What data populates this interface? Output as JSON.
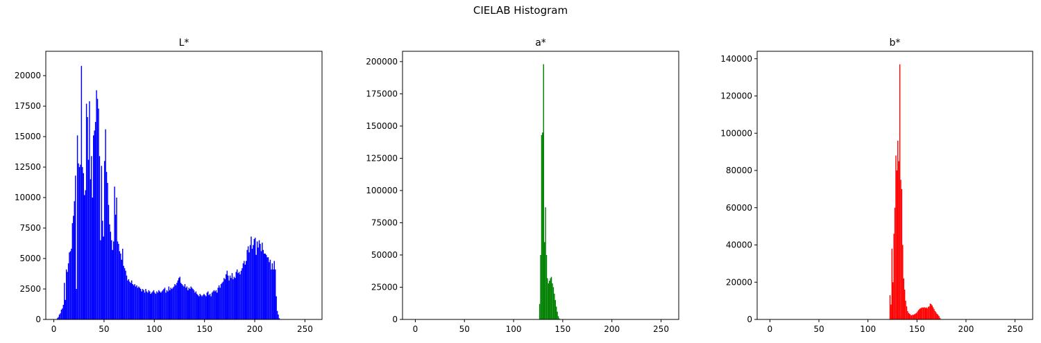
{
  "figure": {
    "title": "CIELAB Histogram"
  },
  "chart_data": [
    {
      "type": "bar",
      "title": "L*",
      "color": "#0000ff",
      "xlim": [
        -8,
        267
      ],
      "ylim": [
        0,
        22000
      ],
      "xticks": [
        0,
        50,
        100,
        150,
        200,
        250
      ],
      "yticks": [
        0,
        2500,
        5000,
        7500,
        10000,
        12500,
        15000,
        17500,
        20000
      ],
      "bin_start": 0,
      "values": [
        0,
        0,
        0,
        100,
        200,
        400,
        500,
        800,
        900,
        1200,
        3000,
        1600,
        4100,
        3900,
        4600,
        5500,
        5600,
        5800,
        7900,
        8500,
        9700,
        11800,
        2500,
        15100,
        12800,
        12500,
        12700,
        20800,
        12500,
        12000,
        10200,
        10600,
        17700,
        16600,
        13100,
        17900,
        11500,
        13400,
        10000,
        15100,
        15500,
        16200,
        18800,
        18100,
        17300,
        13400,
        6500,
        12600,
        8100,
        6800,
        13000,
        15600,
        12100,
        11200,
        9400,
        7800,
        7200,
        6500,
        5700,
        6400,
        10900,
        8600,
        10000,
        6400,
        6200,
        5600,
        5400,
        4900,
        5800,
        4400,
        4200,
        4000,
        3600,
        3200,
        3300,
        3100,
        3000,
        3200,
        2900,
        2800,
        2900,
        2700,
        2800,
        2600,
        2700,
        2600,
        2500,
        2300,
        2500,
        2400,
        2200,
        2500,
        2300,
        2200,
        2400,
        2300,
        2100,
        2200,
        2300,
        2400,
        2200,
        2100,
        2300,
        2200,
        2400,
        2300,
        2200,
        2300,
        2400,
        2500,
        2600,
        2200,
        2400,
        2300,
        2700,
        2400,
        2600,
        2500,
        2600,
        2700,
        2900,
        2800,
        3000,
        3200,
        3400,
        3500,
        3000,
        2900,
        2800,
        2700,
        2900,
        2600,
        2700,
        2400,
        2600,
        2500,
        2700,
        2600,
        2500,
        2400,
        2200,
        2300,
        2100,
        2000,
        1900,
        2100,
        2000,
        1900,
        2000,
        2100,
        2000,
        1900,
        2200,
        2300,
        2000,
        2100,
        1900,
        2200,
        2300,
        2400,
        2300,
        2400,
        2200,
        2600,
        2800,
        2600,
        2900,
        3000,
        3100,
        3400,
        3300,
        3700,
        4000,
        3600,
        3200,
        3600,
        3400,
        3800,
        3300,
        3500,
        3400,
        3900,
        4100,
        3800,
        3900,
        3700,
        4000,
        4200,
        4600,
        4800,
        4500,
        4800,
        5700,
        6000,
        5500,
        6100,
        6800,
        5800,
        6100,
        6600,
        6700,
        5300,
        6400,
        5900,
        6500,
        6200,
        5600,
        6300,
        5700,
        5400,
        5400,
        5300,
        5100,
        5100,
        4700,
        4900,
        4100,
        4600,
        4100,
        4800,
        4100,
        1900,
        700,
        400,
        100,
        0,
        0,
        0,
        0,
        0,
        0,
        0,
        0,
        0,
        0,
        0,
        0,
        0,
        0,
        0,
        0,
        0,
        0,
        0,
        0,
        0,
        0,
        0,
        0,
        0
      ]
    },
    {
      "type": "bar",
      "title": "a*",
      "color": "#008000",
      "xlim": [
        -13,
        268
      ],
      "ylim": [
        0,
        208000
      ],
      "xticks": [
        0,
        50,
        100,
        150,
        200,
        250
      ],
      "yticks": [
        0,
        25000,
        50000,
        75000,
        100000,
        125000,
        150000,
        175000,
        200000
      ],
      "bin_start": 0,
      "values": [
        0,
        0,
        0,
        0,
        0,
        0,
        0,
        0,
        0,
        0,
        0,
        0,
        0,
        0,
        0,
        0,
        0,
        0,
        0,
        0,
        0,
        0,
        0,
        0,
        0,
        0,
        0,
        0,
        0,
        0,
        0,
        0,
        0,
        0,
        0,
        0,
        0,
        0,
        0,
        0,
        0,
        0,
        0,
        0,
        0,
        0,
        0,
        0,
        0,
        0,
        0,
        0,
        0,
        0,
        0,
        0,
        0,
        0,
        0,
        0,
        0,
        0,
        0,
        0,
        0,
        0,
        0,
        0,
        0,
        0,
        0,
        0,
        0,
        0,
        0,
        0,
        0,
        0,
        0,
        0,
        0,
        0,
        0,
        0,
        0,
        0,
        0,
        0,
        0,
        0,
        0,
        0,
        0,
        0,
        0,
        0,
        0,
        0,
        0,
        0,
        0,
        0,
        0,
        0,
        0,
        0,
        0,
        0,
        0,
        0,
        0,
        0,
        0,
        0,
        0,
        0,
        0,
        0,
        0,
        0,
        0,
        0,
        0,
        0,
        0,
        200,
        12000,
        50000,
        143000,
        145000,
        198000,
        60000,
        87000,
        50000,
        32000,
        28000,
        30000,
        32000,
        33000,
        28000,
        25000,
        20000,
        15000,
        10000,
        6000,
        2500,
        800,
        300,
        100,
        0,
        0,
        0,
        0,
        0,
        0,
        0,
        0,
        0,
        0,
        0,
        0,
        0,
        0,
        0,
        0,
        0,
        0,
        0,
        0,
        0,
        0,
        0,
        0,
        0,
        0,
        0,
        0,
        0,
        0,
        0,
        0,
        0,
        0,
        0,
        0,
        0,
        0,
        0,
        0,
        0,
        0,
        0,
        0,
        0,
        0,
        0,
        0,
        0,
        0,
        0,
        0,
        0,
        0,
        0,
        0,
        0,
        0,
        0,
        0,
        0,
        0,
        0,
        0,
        0,
        0,
        0,
        0,
        0,
        0,
        0,
        0,
        0,
        0,
        0,
        0,
        0,
        0,
        0,
        0,
        0,
        0,
        0,
        0,
        0,
        0,
        0,
        0,
        0,
        0,
        0,
        0,
        0,
        0,
        0,
        0,
        0,
        0,
        0,
        0,
        0,
        0,
        0,
        0,
        0,
        0,
        0,
        0,
        0,
        0,
        0,
        0,
        0,
        0,
        0,
        0,
        0,
        0,
        0,
        0,
        0,
        0,
        0,
        0,
        0
      ]
    },
    {
      "type": "bar",
      "title": "b*",
      "color": "#ff0000",
      "xlim": [
        -13,
        268
      ],
      "ylim": [
        0,
        144000
      ],
      "xticks": [
        0,
        50,
        100,
        150,
        200,
        250
      ],
      "yticks": [
        0,
        20000,
        40000,
        60000,
        80000,
        100000,
        120000,
        140000
      ],
      "bin_start": 0,
      "values": [
        0,
        0,
        0,
        0,
        0,
        0,
        0,
        0,
        0,
        0,
        0,
        0,
        0,
        0,
        0,
        0,
        0,
        0,
        0,
        0,
        0,
        0,
        0,
        0,
        0,
        0,
        0,
        0,
        0,
        0,
        0,
        0,
        0,
        0,
        0,
        0,
        0,
        0,
        0,
        0,
        0,
        0,
        0,
        0,
        0,
        0,
        0,
        0,
        0,
        0,
        0,
        0,
        0,
        0,
        0,
        0,
        0,
        0,
        0,
        0,
        0,
        0,
        0,
        0,
        0,
        0,
        0,
        0,
        0,
        0,
        0,
        0,
        0,
        0,
        0,
        0,
        0,
        0,
        0,
        0,
        0,
        0,
        0,
        0,
        0,
        0,
        0,
        0,
        0,
        0,
        0,
        0,
        0,
        0,
        0,
        0,
        0,
        0,
        0,
        0,
        0,
        0,
        0,
        0,
        0,
        0,
        0,
        0,
        0,
        0,
        0,
        0,
        0,
        0,
        0,
        0,
        0,
        0,
        0,
        0,
        0,
        0,
        13000,
        8000,
        38000,
        20000,
        46000,
        60000,
        88000,
        80000,
        96000,
        85000,
        137000,
        75000,
        70000,
        40000,
        22000,
        16000,
        10000,
        7000,
        4500,
        3500,
        3000,
        2500,
        2200,
        2500,
        2500,
        2800,
        3200,
        3500,
        4200,
        5000,
        5500,
        6000,
        6200,
        6500,
        6300,
        6600,
        6200,
        6500,
        6000,
        6800,
        7000,
        8500,
        8200,
        7500,
        6500,
        5500,
        4500,
        3800,
        3000,
        2500,
        1800,
        800,
        200,
        0,
        0,
        0,
        0,
        0,
        0,
        0,
        0,
        0,
        0,
        0,
        0,
        0,
        0,
        0,
        0,
        0,
        0,
        0,
        0,
        0,
        0,
        0,
        0,
        0,
        0,
        0,
        0,
        0,
        0,
        0,
        0,
        0,
        0,
        0,
        0,
        0,
        0,
        0,
        0,
        0,
        0,
        0,
        0,
        0,
        0,
        0,
        0,
        0,
        0,
        0,
        0,
        0,
        0,
        0,
        0,
        0,
        0,
        0,
        0,
        0,
        0,
        0,
        0,
        0,
        0,
        0,
        0,
        0,
        0,
        0,
        0,
        0,
        0,
        0,
        0,
        0,
        0
      ]
    }
  ]
}
